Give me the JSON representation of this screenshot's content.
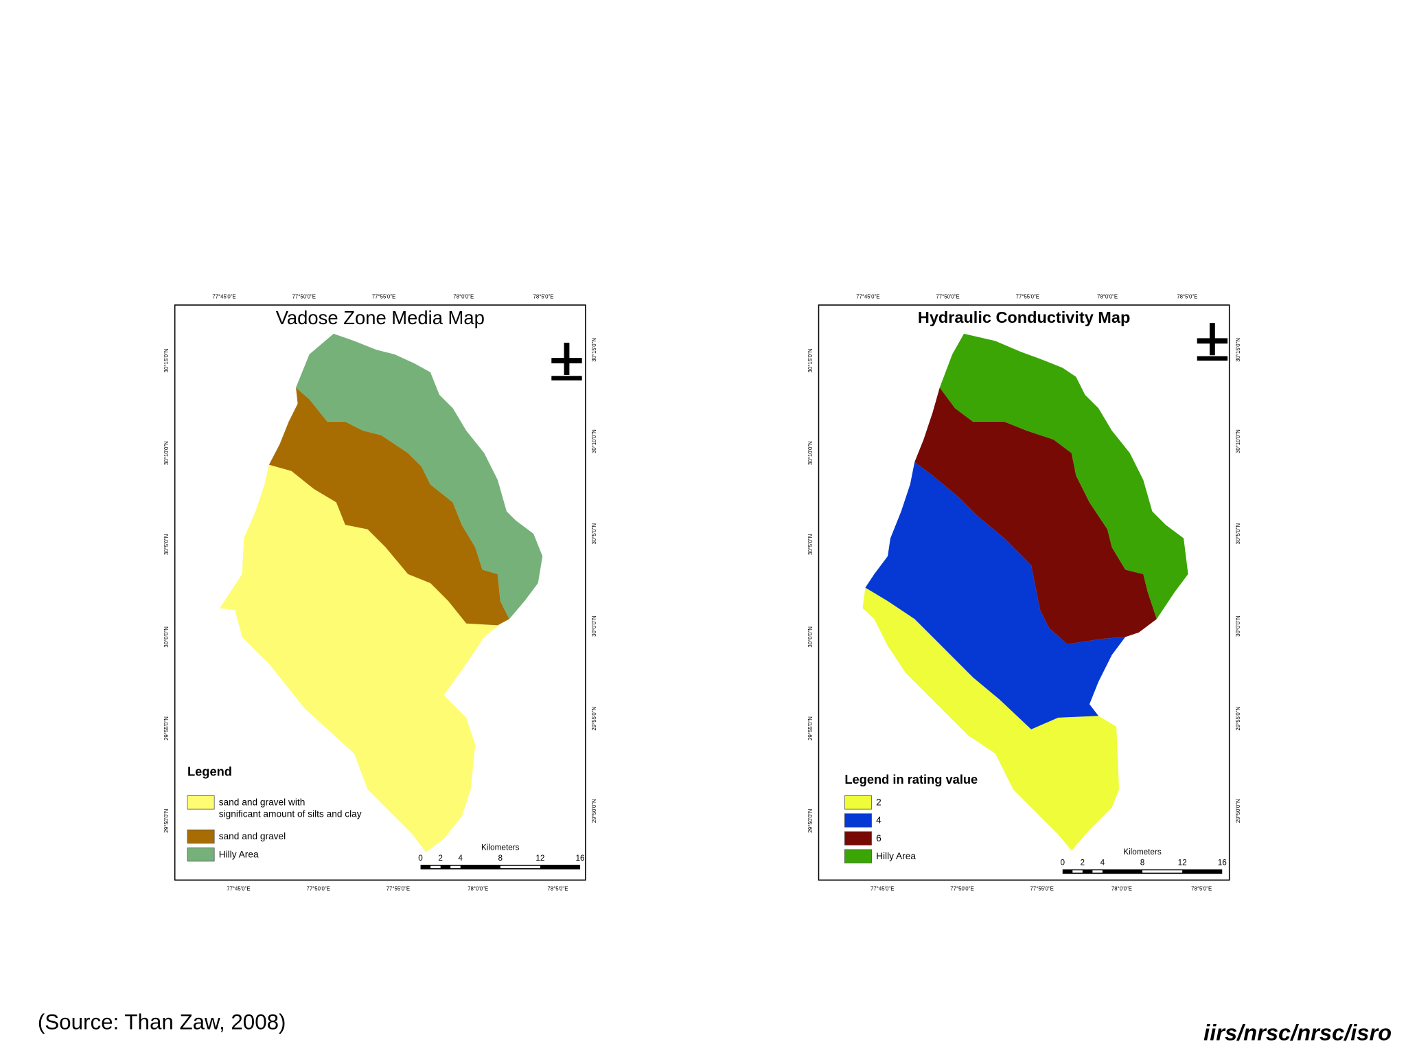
{
  "maps": [
    {
      "title": "Vadose Zone Media Map",
      "legend": {
        "title": "Legend",
        "items": [
          {
            "lines": [
              "sand and gravel with",
              "significant amount of silts and clay"
            ],
            "color": "#fefc72"
          },
          {
            "lines": [
              "sand and gravel"
            ],
            "color": "#a86d02"
          },
          {
            "lines": [
              "Hilly Area"
            ],
            "color": "#76b17a"
          }
        ]
      },
      "scale": {
        "unit": "Kilometers",
        "labels": [
          0,
          2,
          4,
          8,
          12,
          16
        ]
      }
    },
    {
      "title": "Hydraulic Conductivity Map",
      "legend": {
        "title": "Legend in rating value",
        "items": [
          {
            "lines": [
              2
            ],
            "color": "#eefc3a"
          },
          {
            "lines": [
              4
            ],
            "color": "#0638d3"
          },
          {
            "lines": [
              6
            ],
            "color": "#770a05"
          },
          {
            "lines": [
              "Hilly Area"
            ],
            "color": "#3aa505"
          }
        ]
      },
      "scale": {
        "unit": "Kilometers",
        "labels": [
          0,
          2,
          4,
          8,
          12,
          16
        ]
      }
    }
  ],
  "graticule": {
    "lon": [
      "77°45'0\"E",
      "77°50'0\"E",
      "77°55'0\"E",
      "78°0'0\"E",
      "78°5'0\"E"
    ],
    "lat": [
      "30°15'0\"N",
      "30°10'0\"N",
      "30°5'0\"N",
      "30°0'0\"N",
      "29°55'0\"N",
      "29°50'0\"N"
    ]
  },
  "source": "(Source: Than Zaw, 2008)",
  "footer": "iirs/nrsc/nrsc/isro"
}
